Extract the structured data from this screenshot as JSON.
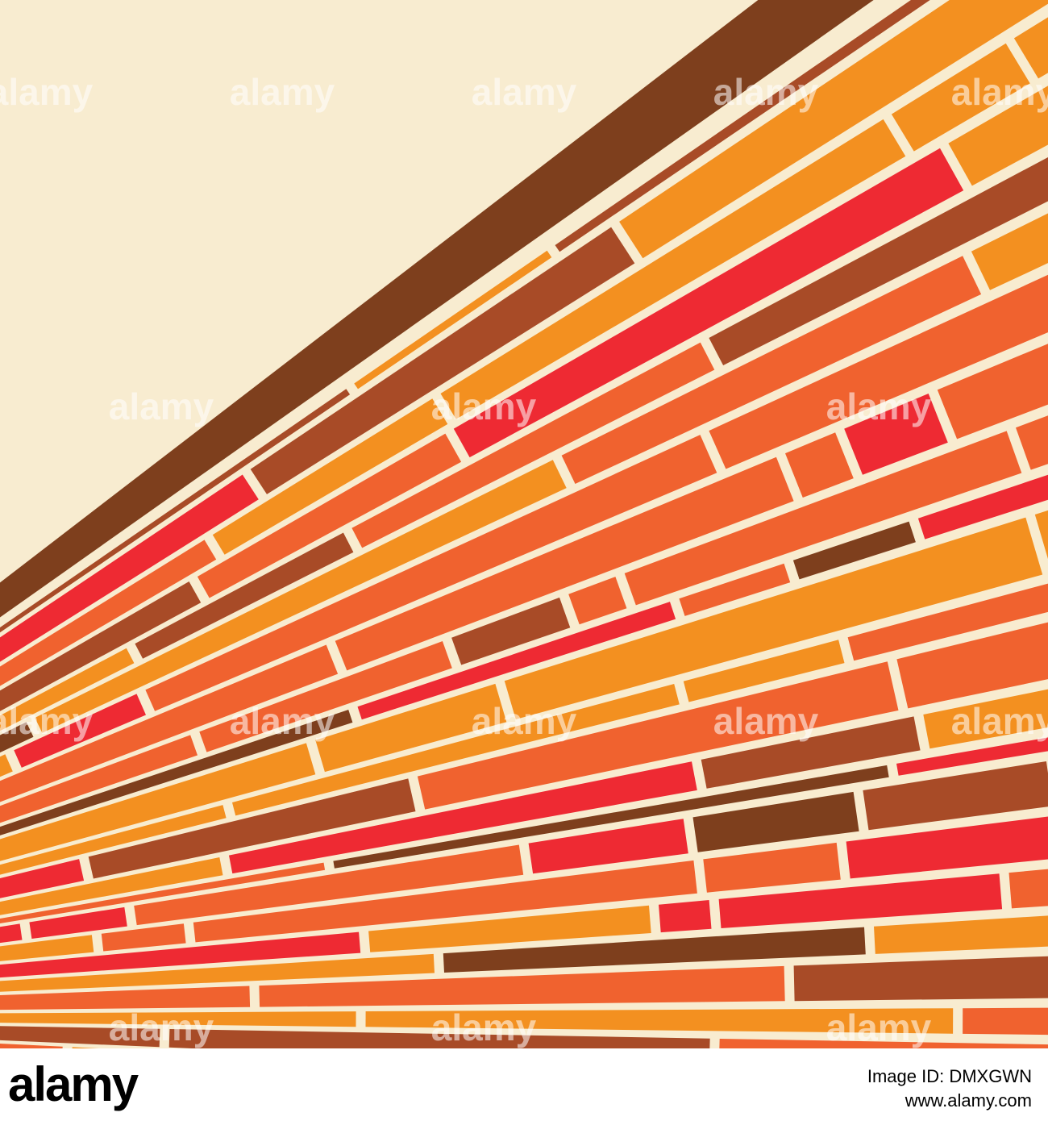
{
  "watermark": "alamy",
  "footer": {
    "logo": "alamy",
    "image_id_label": "Image ID:",
    "image_id": "DMXGWN",
    "url": "www.alamy.com"
  }
}
